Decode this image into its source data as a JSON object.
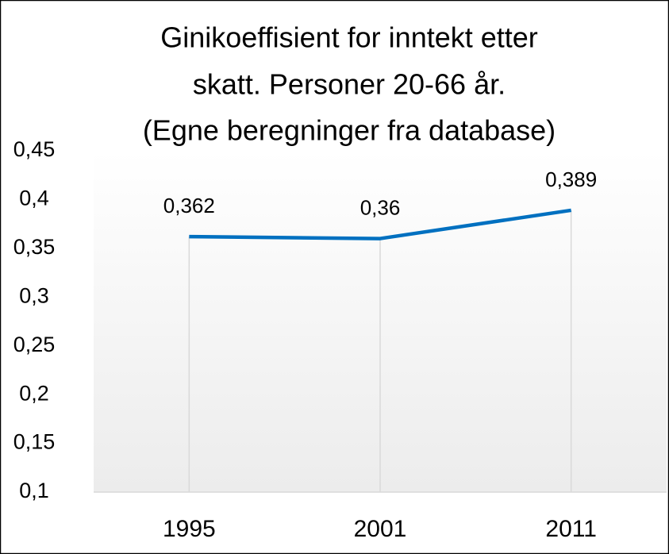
{
  "chart_data": {
    "type": "line",
    "title": [
      "Ginikoeffisient for inntekt etter",
      "skatt. Personer 20-66 år.",
      "(Egne beregninger fra database)"
    ],
    "categories": [
      "1995",
      "2001",
      "2011"
    ],
    "values": [
      0.362,
      0.36,
      0.389
    ],
    "value_labels": [
      "0,362",
      "0,36",
      "0,389"
    ],
    "color": "#0070c0",
    "ylim": [
      0.1,
      0.45
    ],
    "yticks": [
      {
        "value": 0.1,
        "label": "0,1"
      },
      {
        "value": 0.15,
        "label": "0,15"
      },
      {
        "value": 0.2,
        "label": "0,2"
      },
      {
        "value": 0.25,
        "label": "0,25"
      },
      {
        "value": 0.3,
        "label": "0,3"
      },
      {
        "value": 0.35,
        "label": "0,35"
      },
      {
        "value": 0.4,
        "label": "0,4"
      },
      {
        "value": 0.45,
        "label": "0,45"
      }
    ],
    "drop_lines": true
  }
}
